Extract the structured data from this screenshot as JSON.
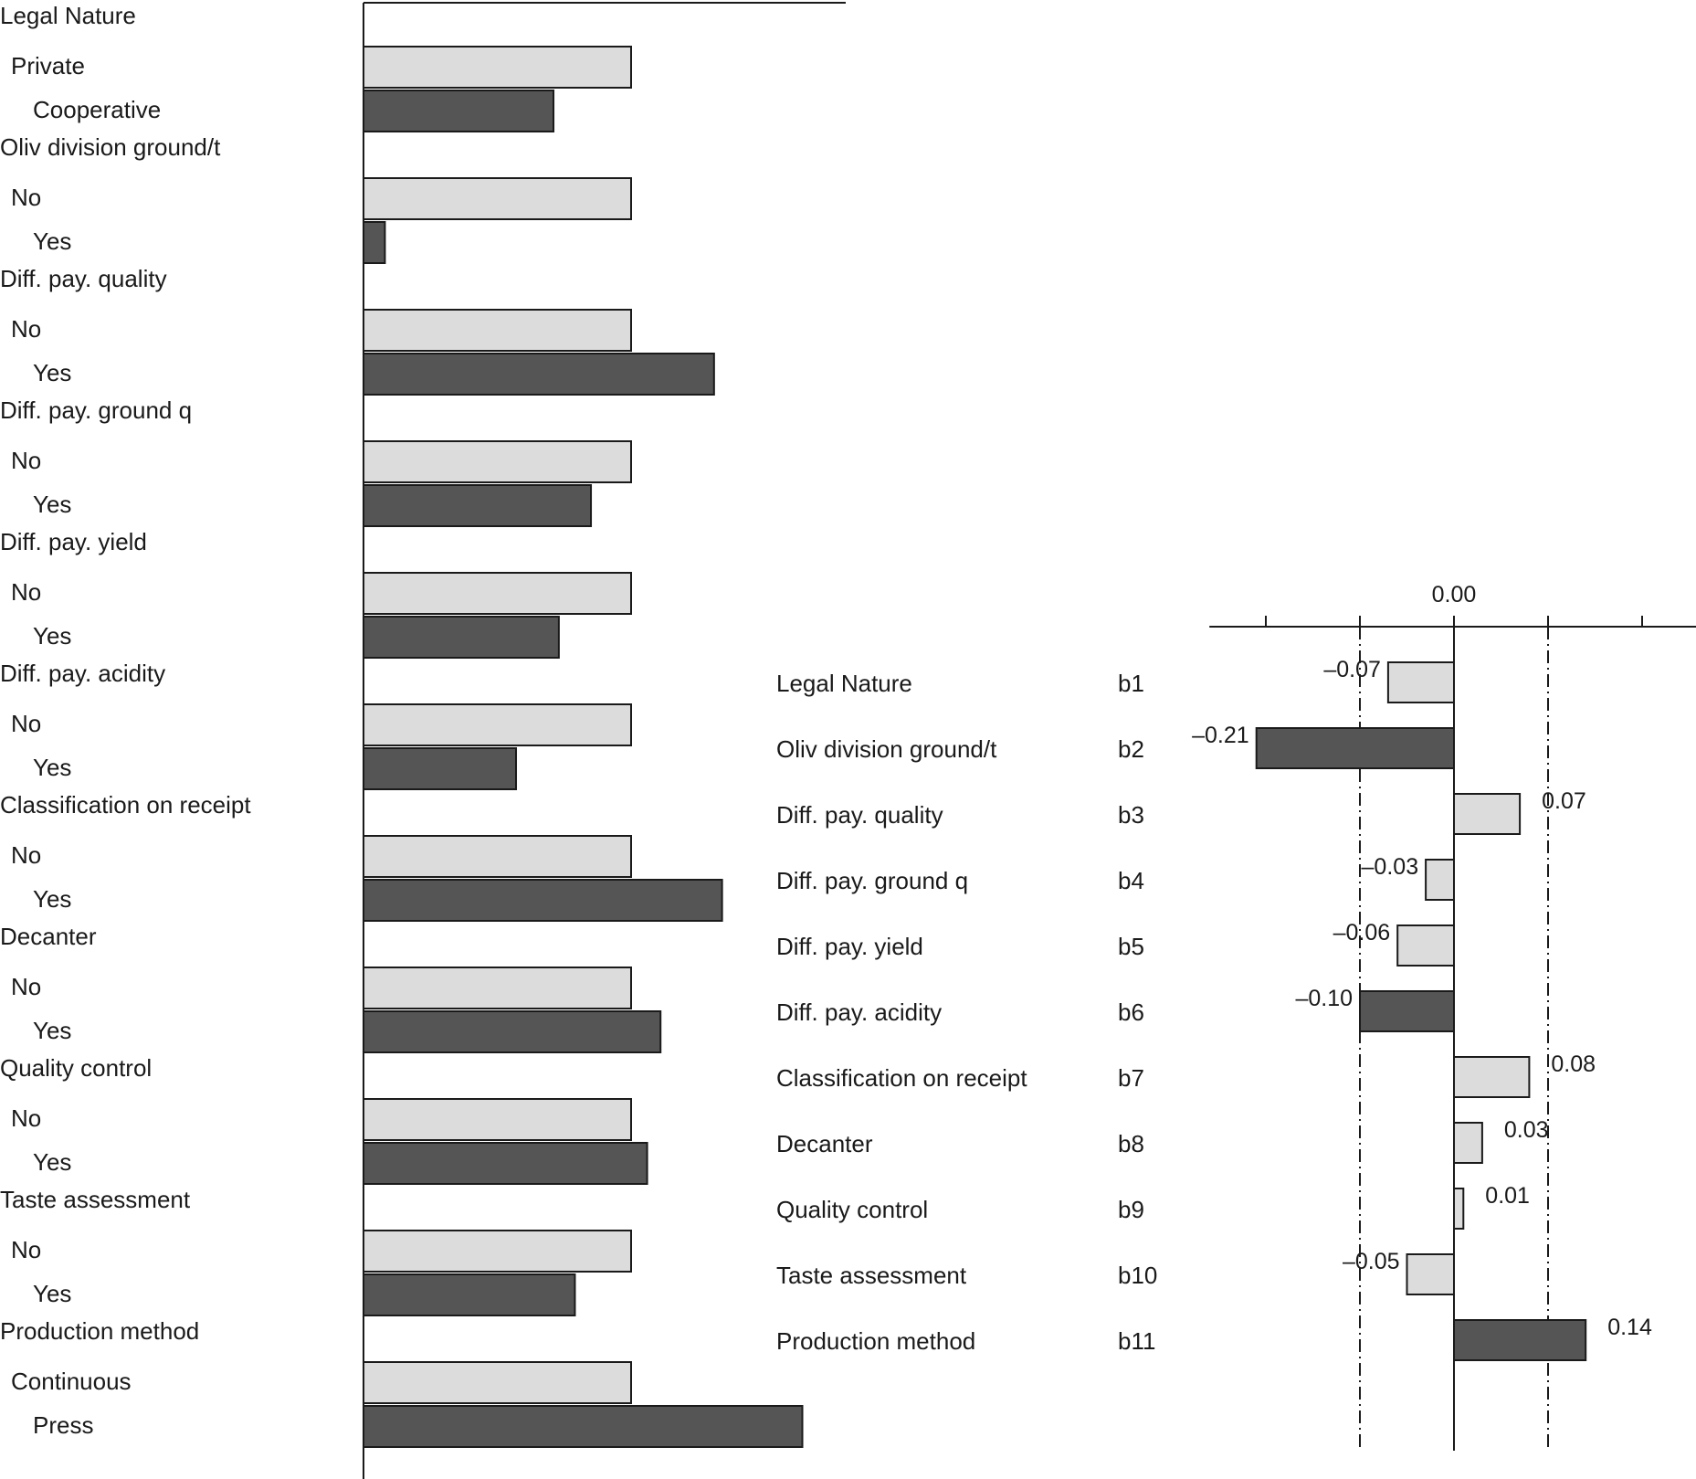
{
  "chart_data": [
    {
      "type": "bar",
      "orientation": "horizontal",
      "title": "",
      "xlabel": "",
      "ylabel": "",
      "grid": false,
      "colors": {
        "level_first": "#dcdcdc",
        "level_second": "#555555"
      },
      "groups": [
        {
          "name": "Legal Nature",
          "levels": [
            {
              "label": "Private",
              "value": 1.0
            },
            {
              "label": "Cooperative",
              "value": 0.71
            }
          ]
        },
        {
          "name": "Oliv division ground/t",
          "levels": [
            {
              "label": "No",
              "value": 1.0
            },
            {
              "label": "Yes",
              "value": 0.08
            }
          ]
        },
        {
          "name": "Diff. pay. quality",
          "levels": [
            {
              "label": "No",
              "value": 1.0
            },
            {
              "label": "Yes",
              "value": 1.31
            }
          ]
        },
        {
          "name": "Diff. pay. ground q",
          "levels": [
            {
              "label": "No",
              "value": 1.0
            },
            {
              "label": "Yes",
              "value": 0.85
            }
          ]
        },
        {
          "name": "Diff. pay. yield",
          "levels": [
            {
              "label": "No",
              "value": 1.0
            },
            {
              "label": "Yes",
              "value": 0.73
            }
          ]
        },
        {
          "name": "Diff. pay. acidity",
          "levels": [
            {
              "label": "No",
              "value": 1.0
            },
            {
              "label": "Yes",
              "value": 0.57
            }
          ]
        },
        {
          "name": "Classification on receipt",
          "levels": [
            {
              "label": "No",
              "value": 1.0
            },
            {
              "label": "Yes",
              "value": 1.34
            }
          ]
        },
        {
          "name": "Decanter",
          "levels": [
            {
              "label": "No",
              "value": 1.0
            },
            {
              "label": "Yes",
              "value": 1.11
            }
          ]
        },
        {
          "name": "Quality control",
          "levels": [
            {
              "label": "No",
              "value": 1.0
            },
            {
              "label": "Yes",
              "value": 1.06
            }
          ]
        },
        {
          "name": "Taste assessment",
          "levels": [
            {
              "label": "No",
              "value": 1.0
            },
            {
              "label": "Yes",
              "value": 0.79
            }
          ]
        },
        {
          "name": "Production method",
          "levels": [
            {
              "label": "Continuous",
              "value": 1.0
            },
            {
              "label": "Press",
              "value": 1.64
            }
          ]
        }
      ]
    },
    {
      "type": "bar",
      "orientation": "horizontal",
      "title": "",
      "xlabel": "",
      "ylabel": "",
      "grid": false,
      "zero_label": "0.00",
      "xlim": [
        -0.26,
        0.26
      ],
      "ticks": [
        -0.2,
        -0.1,
        0.0,
        0.1,
        0.2
      ],
      "reference_lines": [
        -0.1,
        0.1
      ],
      "colors": {
        "minor": "#dcdcdc",
        "major": "#555555"
      },
      "items": [
        {
          "name": "Legal Nature",
          "code": "b1",
          "value": -0.07,
          "label": "–0.07",
          "emphasis": false
        },
        {
          "name": "Oliv division ground/t",
          "code": "b2",
          "value": -0.21,
          "label": "–0.21",
          "emphasis": true
        },
        {
          "name": "Diff. pay. quality",
          "code": "b3",
          "value": 0.07,
          "label": "0.07",
          "emphasis": false
        },
        {
          "name": "Diff. pay. ground q",
          "code": "b4",
          "value": -0.03,
          "label": "–0.03",
          "emphasis": false
        },
        {
          "name": "Diff. pay. yield",
          "code": "b5",
          "value": -0.06,
          "label": "–0.06",
          "emphasis": false
        },
        {
          "name": "Diff. pay. acidity",
          "code": "b6",
          "value": -0.1,
          "label": "–0.10",
          "emphasis": true
        },
        {
          "name": "Classification on receipt",
          "code": "b7",
          "value": 0.08,
          "label": "0.08",
          "emphasis": false
        },
        {
          "name": "Decanter",
          "code": "b8",
          "value": 0.03,
          "label": "0.03",
          "emphasis": false
        },
        {
          "name": "Quality control",
          "code": "b9",
          "value": 0.01,
          "label": "0.01",
          "emphasis": false
        },
        {
          "name": "Taste assessment",
          "code": "b10",
          "value": -0.05,
          "label": "–0.05",
          "emphasis": false
        },
        {
          "name": "Production method",
          "code": "b11",
          "value": 0.14,
          "label": "0.14",
          "emphasis": true
        }
      ]
    }
  ]
}
